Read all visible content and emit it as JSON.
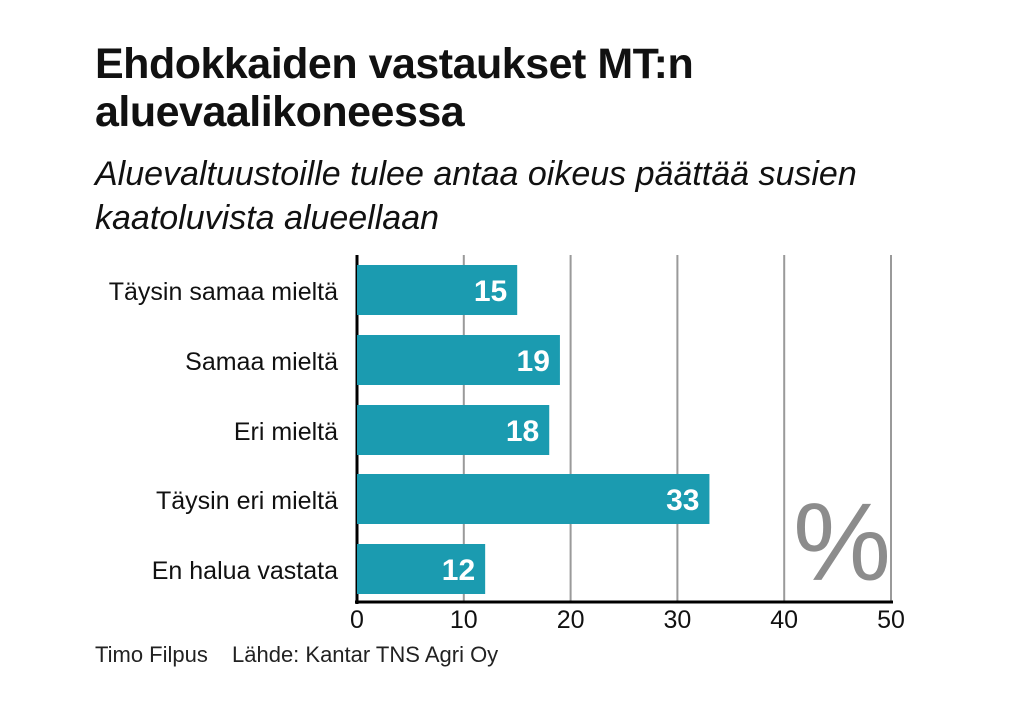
{
  "title": "Ehdokkaiden vastaukset MT:n aluevaalikoneessa",
  "subtitle": "Aluevaltuustoille tulee antaa oikeus päättää susien kaatoluvista alueellaan",
  "credits": {
    "author": "Timo Filpus",
    "source": "Lähde: Kantar TNS Agri Oy"
  },
  "colors": {
    "bar": "#1b9bb0",
    "grid": "#9a9a9a",
    "axis": "#000000",
    "percent": "#8c8c8c"
  },
  "chart_data": {
    "type": "bar",
    "orientation": "horizontal",
    "categories": [
      "Täysin samaa mieltä",
      "Samaa mieltä",
      "Eri mieltä",
      "Täysin eri mieltä",
      "En halua vastata"
    ],
    "values": [
      15,
      19,
      18,
      33,
      12
    ],
    "xlim": [
      0,
      50
    ],
    "xticks": [
      0,
      10,
      20,
      30,
      40,
      50
    ],
    "unit_label": "%",
    "grid": true
  }
}
